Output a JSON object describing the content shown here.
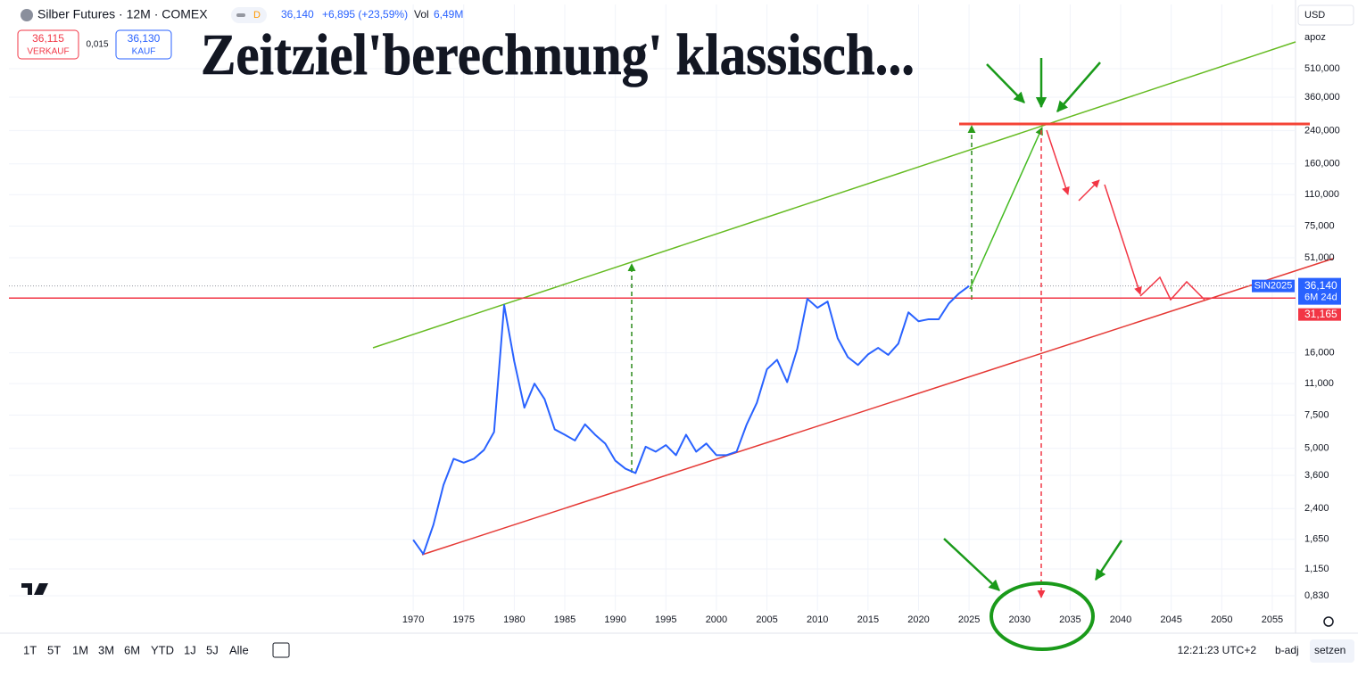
{
  "header": {
    "symbol": "Silber Futures · 12M · COMEX",
    "badge": "D",
    "last": "36,140",
    "change": "+6,895 (+23,59%)",
    "volume_label": "Vol",
    "volume": "6,49M"
  },
  "trade": {
    "sell_price": "36,115",
    "sell_label": "VERKAUF",
    "spread": "0,015",
    "buy_price": "36,130",
    "buy_label": "KAUF"
  },
  "chart_data": {
    "type": "line",
    "title": "Zeitziel'berechnung' klassisch...",
    "x": [
      1970,
      1971,
      1972,
      1973,
      1974,
      1975,
      1976,
      1977,
      1978,
      1979,
      1980,
      1981,
      1982,
      1983,
      1984,
      1985,
      1986,
      1987,
      1988,
      1989,
      1990,
      1991,
      1992,
      1993,
      1994,
      1995,
      1996,
      1997,
      1998,
      1999,
      2000,
      2001,
      2002,
      2003,
      2004,
      2005,
      2006,
      2007,
      2008,
      2009,
      2010,
      2011,
      2012,
      2013,
      2014,
      2015,
      2016,
      2017,
      2018,
      2019,
      2020,
      2021,
      2022,
      2023,
      2024,
      2025
    ],
    "series": [
      {
        "name": "SIN2025",
        "color": "#2962ff",
        "values": [
          1.64,
          1.38,
          1.97,
          3.2,
          4.4,
          4.2,
          4.4,
          4.9,
          6.1,
          28.6,
          14.4,
          8.2,
          11,
          9.1,
          6.3,
          5.9,
          5.5,
          6.7,
          5.9,
          5.3,
          4.3,
          3.9,
          3.7,
          5.1,
          4.8,
          5.2,
          4.6,
          5.9,
          4.8,
          5.3,
          4.6,
          4.6,
          4.8,
          6.7,
          8.7,
          13.1,
          14.7,
          11.2,
          16.8,
          30.9,
          27.7,
          29.9,
          19.1,
          15.2,
          13.8,
          15.7,
          17,
          15.6,
          17.9,
          26.2,
          23.5,
          24.1,
          24.1,
          29.2,
          33,
          36.14
        ]
      }
    ],
    "xlim": [
      1930,
      2057.3
    ],
    "xticks": [
      1970,
      1975,
      1980,
      1985,
      1990,
      1995,
      2000,
      2005,
      2010,
      2015,
      2020,
      2025,
      2030,
      2035,
      2040,
      2045,
      2050,
      2055
    ],
    "ylim": [
      0.69,
      1115
    ],
    "log_scale": true,
    "grid": true,
    "yticks": [
      {
        "value": 510,
        "label": "510,000"
      },
      {
        "value": 360,
        "label": "360,000"
      },
      {
        "value": 240,
        "label": "240,000"
      },
      {
        "value": 160,
        "label": "160,000"
      },
      {
        "value": 110,
        "label": "110,000"
      },
      {
        "value": 75,
        "label": "75,000"
      },
      {
        "value": 51,
        "label": "51,000"
      },
      {
        "value": 16,
        "label": "16,000"
      },
      {
        "value": 11,
        "label": "11,000"
      },
      {
        "value": 7.5,
        "label": "7,500"
      },
      {
        "value": 5,
        "label": "5,000"
      },
      {
        "value": 3.6,
        "label": "3,600"
      },
      {
        "value": 2.4,
        "label": "2,400"
      },
      {
        "value": 1.65,
        "label": "1,650"
      },
      {
        "value": 1.15,
        "label": "1,150"
      },
      {
        "value": 0.83,
        "label": "0,830"
      }
    ],
    "last_price": {
      "value": 36.14,
      "label": "36,140",
      "countdown": "6M 24d"
    },
    "price_line": {
      "value": 31.165,
      "label": "31,165",
      "color": "#f23645"
    }
  },
  "toolbar": {
    "currency": "USD",
    "mode": "apoz",
    "ranges": [
      "1T",
      "5T",
      "1M",
      "3M",
      "6M",
      "YTD",
      "1J",
      "5J",
      "Alle"
    ],
    "clock": "12:21:23 UTC+2",
    "adjust": "b-adj",
    "settings": "setzen"
  }
}
